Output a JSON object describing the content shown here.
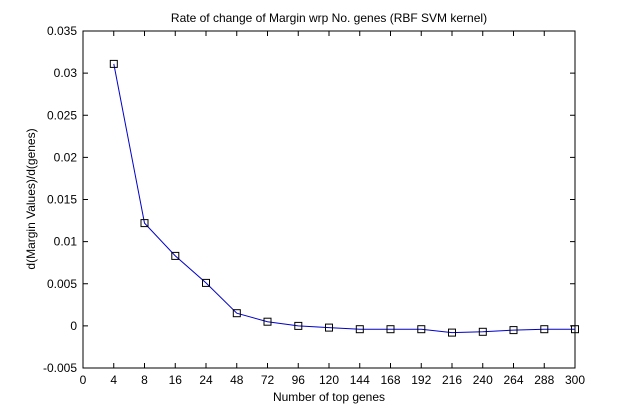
{
  "chart_data": {
    "type": "line",
    "title": "Rate of change of Margin wrp No. genes (RBF SVM kernel)",
    "xlabel": "Number of top genes",
    "ylabel": "d(Margin Values)/d(genes)",
    "x_tick_labels": [
      "0",
      "4",
      "8",
      "16",
      "24",
      "48",
      "72",
      "96",
      "120",
      "144",
      "168",
      "192",
      "216",
      "240",
      "264",
      "288",
      "300"
    ],
    "y_ticks": [
      -0.005,
      0,
      0.005,
      0.01,
      0.015,
      0.02,
      0.025,
      0.03,
      0.035
    ],
    "y_tick_labels": [
      "-0.005",
      "0",
      "0.005",
      "0.01",
      "0.015",
      "0.02",
      "0.025",
      "0.03",
      "0.035"
    ],
    "ylim": [
      -0.005,
      0.035
    ],
    "grid": false,
    "series": [
      {
        "marker": "square",
        "color": "#0000cc",
        "x": [
          "4",
          "8",
          "16",
          "24",
          "48",
          "72",
          "96",
          "120",
          "144",
          "168",
          "192",
          "216",
          "240",
          "264",
          "288",
          "300"
        ],
        "values": [
          0.0311,
          0.0122,
          0.0083,
          0.0051,
          0.0015,
          0.0005,
          0.0,
          -0.0002,
          -0.0004,
          -0.0004,
          -0.0004,
          -0.0008,
          -0.0007,
          -0.0005,
          -0.0004,
          -0.0004
        ]
      }
    ]
  }
}
